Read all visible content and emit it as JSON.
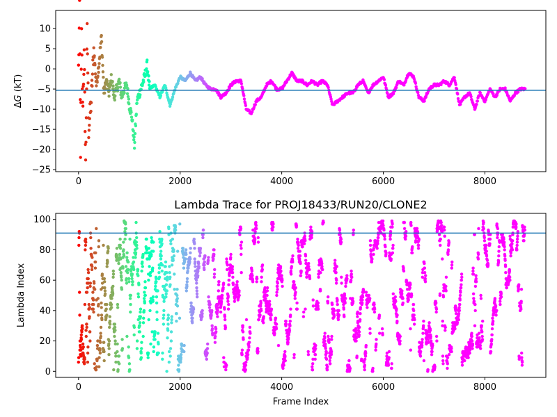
{
  "chart_data": [
    {
      "type": "scatter",
      "title": "",
      "xlabel": "",
      "ylabel_prefix": "Δ",
      "ylabel_var": "G",
      "ylabel_suffix": " (kT)",
      "xlim": [
        -450,
        9200
      ],
      "ylim": [
        -25.5,
        14.5
      ],
      "xticks": [
        0,
        2000,
        4000,
        6000,
        8000
      ],
      "xtick_labels": [
        "0",
        "2000",
        "4000",
        "6000",
        "8000"
      ],
      "yticks": [
        10,
        5,
        0,
        -5,
        -10,
        -15,
        -20,
        -25
      ],
      "ytick_labels": [
        "10",
        "5",
        "0",
        "−5",
        "−10",
        "−15",
        "−20",
        "−25"
      ],
      "hline": {
        "y": -5.3,
        "color": "#1f77b4"
      },
      "colormap": "rainbow",
      "series": [
        {
          "x": [
            0,
            20,
            40,
            60,
            80,
            110,
            140,
            170,
            200,
            250,
            300,
            350,
            400,
            450,
            500,
            550,
            600,
            650,
            700,
            750,
            800,
            850,
            900,
            950,
            1000,
            1050,
            1100,
            1150,
            1200,
            1250,
            1300,
            1350,
            1400,
            1500,
            1600,
            1700,
            1800,
            1900,
            2000,
            2100,
            2200,
            2300,
            2400,
            2500,
            2600,
            2700,
            2800,
            2900,
            3000,
            3100,
            3200,
            3300,
            3400,
            3500,
            3600,
            3700,
            3800,
            3900,
            4000,
            4100,
            4200,
            4300,
            4400,
            4500,
            4600,
            4700,
            4800,
            4900,
            5000,
            5100,
            5200,
            5300,
            5400,
            5500,
            5600,
            5700,
            5800,
            5900,
            6000,
            6100,
            6200,
            6300,
            6400,
            6500,
            6600,
            6700,
            6800,
            6900,
            7000,
            7100,
            7200,
            7300,
            7400,
            7500,
            7600,
            7700,
            7800,
            7900,
            8000,
            8100,
            8200,
            8300,
            8400,
            8500,
            8600,
            8700,
            8800
          ],
          "y": [
            0,
            14,
            -20,
            8,
            -10,
            3,
            -24,
            9,
            -15,
            -8,
            5,
            -4,
            1,
            8,
            -6,
            -3,
            -6,
            -2,
            -7,
            -5,
            -3,
            -7,
            -5,
            -4,
            -9,
            -12,
            -19,
            -8,
            -6,
            -4,
            -2,
            1,
            -5,
            -4,
            -7,
            -4,
            -9,
            -5,
            -2,
            -3,
            -1,
            -3,
            -2,
            -4,
            -5,
            -5,
            -7,
            -6,
            -4,
            -3,
            -3,
            -10,
            -11,
            -8,
            -7,
            -4,
            -3,
            -5,
            -5,
            -3,
            -1,
            -3,
            -3,
            -4,
            -3,
            -4,
            -3,
            -4,
            -9,
            -8,
            -7,
            -6,
            -6,
            -4,
            -3,
            -6,
            -4,
            -3,
            -2,
            -7,
            -6,
            -3,
            -4,
            -1,
            -2,
            -7,
            -8,
            -5,
            -4,
            -4,
            -3,
            -4,
            -2,
            -9,
            -7,
            -6,
            -10,
            -6,
            -8,
            -5,
            -7,
            -5,
            -5,
            -8,
            -6,
            -5,
            -5
          ]
        }
      ]
    },
    {
      "type": "scatter",
      "title": "Lambda Trace for PROJ18433/RUN20/CLONE2",
      "xlabel": "Frame Index",
      "ylabel": "Lambda Index",
      "xlim": [
        -450,
        9200
      ],
      "ylim": [
        -4,
        104
      ],
      "xticks": [
        0,
        2000,
        4000,
        6000,
        8000
      ],
      "xtick_labels": [
        "0",
        "2000",
        "4000",
        "6000",
        "8000"
      ],
      "yticks": [
        0,
        20,
        40,
        60,
        80,
        100
      ],
      "ytick_labels": [
        "0",
        "20",
        "40",
        "60",
        "80",
        "100"
      ],
      "hline": {
        "y": 91,
        "color": "#1f77b4"
      },
      "colormap": "rainbow",
      "series": [
        {
          "x_start": 0,
          "x_end": 8790,
          "y_range": [
            0,
            99
          ]
        }
      ]
    }
  ]
}
